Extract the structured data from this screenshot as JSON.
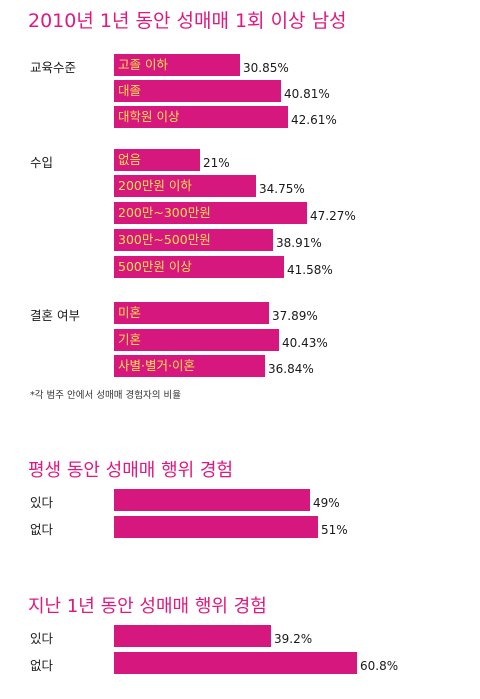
{
  "chart_data": [
    {
      "type": "bar",
      "orientation": "horizontal",
      "title": "2010년 1년 동안 성매매 1회 이상 남성",
      "groups": [
        {
          "label": "교육수준",
          "categories": [
            "고졸 이하",
            "대졸",
            "대학원 이상"
          ],
          "values": [
            30.85,
            40.81,
            42.61
          ],
          "value_labels": [
            "30.85%",
            "40.81%",
            "42.61%"
          ]
        },
        {
          "label": "수입",
          "categories": [
            "없음",
            "200만원 이하",
            "200만~300만원",
            "300만~500만원",
            "500만원 이상"
          ],
          "values": [
            21,
            34.75,
            47.27,
            38.91,
            41.58
          ],
          "value_labels": [
            "21%",
            "34.75%",
            "47.27%",
            "38.91%",
            "41.58%"
          ]
        },
        {
          "label": "결혼 여부",
          "categories": [
            "미혼",
            "기혼",
            "사별·별거·이혼"
          ],
          "values": [
            37.89,
            40.43,
            36.84
          ],
          "value_labels": [
            "37.89%",
            "40.43%",
            "36.84%"
          ]
        }
      ],
      "footnote": "*각 범주 안에서 성매매 경험자의 비율"
    },
    {
      "type": "bar",
      "orientation": "horizontal",
      "title": "평생 동안 성매매 행위 경험",
      "categories": [
        "있다",
        "없다"
      ],
      "values": [
        49,
        51
      ],
      "value_labels": [
        "49%",
        "51%"
      ]
    },
    {
      "type": "bar",
      "orientation": "horizontal",
      "title": "지난 1년 동안 성매매 행위 경험",
      "categories": [
        "있다",
        "없다"
      ],
      "values": [
        39.2,
        60.8
      ],
      "value_labels": [
        "39.2%",
        "60.8%"
      ]
    }
  ],
  "colors": {
    "bar": "#d6177d",
    "bar_label": "#fde24c",
    "title": "#e0187f"
  }
}
